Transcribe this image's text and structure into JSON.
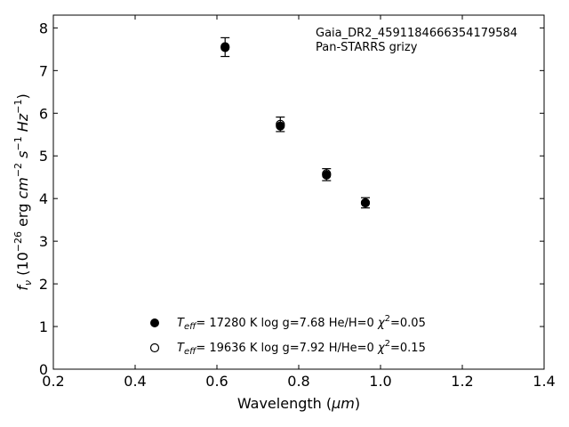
{
  "chart_data": {
    "type": "scatter",
    "xlabel_prefix": "Wavelength (",
    "xlabel_unit": "μm",
    "xlabel_suffix": ")",
    "ylabel": "f_ν (10^−26 erg cm^−2 s^−1 Hz^−1)",
    "xlim": [
      0.2,
      1.4
    ],
    "ylim": [
      0,
      8.3
    ],
    "x_ticks": [
      "0.2",
      "0.4",
      "0.6",
      "0.8",
      "1.0",
      "1.2",
      "1.4"
    ],
    "y_ticks": [
      "0",
      "1",
      "2",
      "3",
      "4",
      "5",
      "6",
      "7",
      "8"
    ],
    "annotations": [
      "Gaia_DR2_4591184666354179584",
      "Pan-STARRS grizy"
    ],
    "series": [
      {
        "marker": "filled-circle",
        "x": [
          0.62,
          0.755,
          0.868,
          0.963
        ],
        "y": [
          7.54,
          5.7,
          4.55,
          3.9
        ],
        "legend": {
          "teff": "= 17280 K",
          "logg": "log g=7.68",
          "comp": "He/H=0",
          "chi2": "=0.05"
        }
      },
      {
        "marker": "open-circle",
        "x": [
          0.62,
          0.755,
          0.868,
          0.963
        ],
        "y": [
          7.56,
          5.74,
          4.58,
          3.9
        ],
        "legend": {
          "teff": "= 19636 K",
          "logg": "log g=7.92",
          "comp": "H/He=0",
          "chi2": "=0.15"
        }
      }
    ],
    "observed": {
      "x": [
        0.62,
        0.755,
        0.868,
        0.963
      ],
      "y": [
        7.55,
        5.74,
        4.56,
        3.9
      ],
      "yerr": [
        0.22,
        0.17,
        0.14,
        0.12
      ]
    },
    "grid": false,
    "legend_position": "bottom-center",
    "colors": {
      "marker": "#000000",
      "axis": "#000000"
    }
  }
}
